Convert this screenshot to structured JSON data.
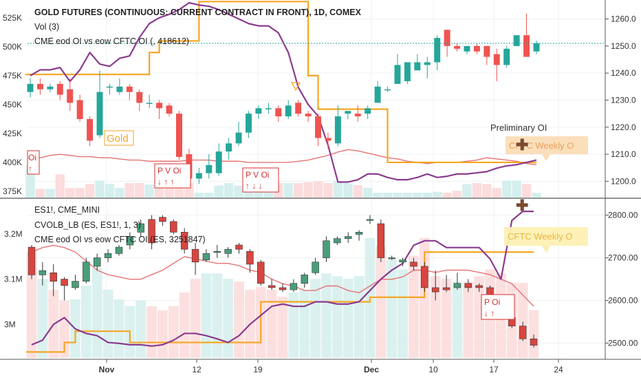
{
  "top": {
    "title": "GOLD FUTURES (CONTINUOUS: CURRENT CONTRACT IN FRONT), 1D, COMEX",
    "legend_vol": "Vol (3)",
    "legend_oi": "CME eod OI vs eow CFTC OI (, 418612)",
    "gold_label": "Gold",
    "preliminary_label": "Preliminary OI",
    "cftc_label": "CFTC Weekly O",
    "left_ticks": [
      "525K",
      "500K",
      "475K",
      "450K",
      "425K",
      "400K",
      "375K"
    ],
    "right_ticks": [
      "1260.0",
      "1250.0",
      "1240.0",
      "1230.0",
      "1220.0",
      "1210.0",
      "1200.0"
    ],
    "badges": [
      {
        "top": "Oi",
        "bottom": "↑"
      },
      {
        "top": "P V Oi",
        "bottom": "↓ ↑ ↑"
      },
      {
        "top": "P V Oi",
        "bottom": "↑ ↓ ↓"
      }
    ]
  },
  "bottom": {
    "legend_sym": "ES1!, CME_MINI",
    "legend_cvolb": "CVOLB_LB (ES, ES1!, 1, 3)",
    "legend_oi": "CME eod OI vs eow CFTC OI (ES, 3251847)",
    "cftc_label": "CFTC Weekly O",
    "left_ticks": [
      "3.2M",
      "3.1M",
      "3M"
    ],
    "right_ticks": [
      "2800.00",
      "2700.00",
      "2600.00",
      "2500.00"
    ],
    "badge": {
      "top": "P Oi",
      "bottom": "↓ ↑"
    }
  },
  "xaxis": {
    "labels": [
      "Nov",
      "12",
      "19",
      "Dec",
      "10",
      "17",
      "24"
    ]
  },
  "colors": {
    "up": "#26a69a",
    "down": "#ef5350",
    "oi": "#f5a623",
    "purple": "#8b3a8f",
    "pinkline": "#e57373"
  },
  "chart_data": [
    {
      "type": "candlestick",
      "title": "GOLD FUTURES (CONTINUOUS: CURRENT CONTRACT IN FRONT), 1D, COMEX",
      "price_range": [
        1195,
        1266
      ],
      "oi_range": [
        372000,
        538000
      ],
      "candles": [
        {
          "o": 1233,
          "c": 1236,
          "h": 1238,
          "l": 1231
        },
        {
          "o": 1236,
          "c": 1234,
          "h": 1238,
          "l": 1232
        },
        {
          "o": 1234,
          "c": 1235,
          "h": 1236,
          "l": 1233
        },
        {
          "o": 1236,
          "c": 1232,
          "h": 1237,
          "l": 1230
        },
        {
          "o": 1234,
          "c": 1229,
          "h": 1238,
          "l": 1226
        },
        {
          "o": 1230,
          "c": 1223,
          "h": 1232,
          "l": 1222
        },
        {
          "o": 1223,
          "c": 1215,
          "h": 1224,
          "l": 1213
        },
        {
          "o": 1217,
          "c": 1233,
          "h": 1241,
          "l": 1216
        },
        {
          "o": 1235,
          "c": 1235,
          "h": 1236,
          "l": 1232
        },
        {
          "o": 1233,
          "c": 1235,
          "h": 1238,
          "l": 1232
        },
        {
          "o": 1235,
          "c": 1233,
          "h": 1236,
          "l": 1230
        },
        {
          "o": 1233,
          "c": 1229,
          "h": 1234,
          "l": 1226
        },
        {
          "o": 1229,
          "c": 1229,
          "h": 1232,
          "l": 1227
        },
        {
          "o": 1229,
          "c": 1227,
          "h": 1230,
          "l": 1223
        },
        {
          "o": 1228,
          "c": 1225,
          "h": 1229,
          "l": 1224
        },
        {
          "o": 1225,
          "c": 1209,
          "h": 1226,
          "l": 1208
        },
        {
          "o": 1210,
          "c": 1201,
          "h": 1212,
          "l": 1199
        },
        {
          "o": 1201,
          "c": 1203,
          "h": 1205,
          "l": 1199
        },
        {
          "o": 1203,
          "c": 1206,
          "h": 1210,
          "l": 1201
        },
        {
          "o": 1203,
          "c": 1211,
          "h": 1214,
          "l": 1202
        },
        {
          "o": 1211,
          "c": 1214,
          "h": 1216,
          "l": 1208
        },
        {
          "o": 1214,
          "c": 1218,
          "h": 1222,
          "l": 1213
        },
        {
          "o": 1218,
          "c": 1225,
          "h": 1226,
          "l": 1216
        },
        {
          "o": 1225,
          "c": 1227,
          "h": 1228,
          "l": 1223
        },
        {
          "o": 1227,
          "c": 1227,
          "h": 1229,
          "l": 1225
        },
        {
          "o": 1227,
          "c": 1224,
          "h": 1228,
          "l": 1222
        },
        {
          "o": 1224,
          "c": 1228,
          "h": 1230,
          "l": 1223
        },
        {
          "o": 1229,
          "c": 1225,
          "h": 1230,
          "l": 1224
        },
        {
          "o": 1225,
          "c": 1224,
          "h": 1226,
          "l": 1222
        },
        {
          "o": 1224,
          "c": 1216,
          "h": 1225,
          "l": 1213
        },
        {
          "o": 1216,
          "c": 1215,
          "h": 1218,
          "l": 1212
        },
        {
          "o": 1214,
          "c": 1224,
          "h": 1228,
          "l": 1213
        },
        {
          "o": 1225,
          "c": 1226,
          "h": 1226,
          "l": 1223
        },
        {
          "o": 1225,
          "c": 1224,
          "h": 1228,
          "l": 1222
        },
        {
          "o": 1225,
          "c": 1227,
          "h": 1228,
          "l": 1223
        },
        {
          "o": 1229,
          "c": 1235,
          "h": 1237,
          "l": 1229
        },
        {
          "o": 1234,
          "c": 1234,
          "h": 1235,
          "l": 1233
        },
        {
          "o": 1236,
          "c": 1243,
          "h": 1247,
          "l": 1236
        },
        {
          "o": 1237,
          "c": 1244,
          "h": 1244,
          "l": 1236
        },
        {
          "o": 1241,
          "c": 1244,
          "h": 1247,
          "l": 1241
        },
        {
          "o": 1243,
          "c": 1244,
          "h": 1246,
          "l": 1238
        },
        {
          "o": 1244,
          "c": 1253,
          "h": 1254,
          "l": 1241
        },
        {
          "o": 1256,
          "c": 1250,
          "h": 1256,
          "l": 1246
        },
        {
          "o": 1250,
          "c": 1249,
          "h": 1251,
          "l": 1248
        },
        {
          "o": 1248,
          "c": 1250,
          "h": 1250,
          "l": 1247
        },
        {
          "o": 1250,
          "c": 1248,
          "h": 1251,
          "l": 1247
        },
        {
          "o": 1250,
          "c": 1246,
          "h": 1250,
          "l": 1243
        },
        {
          "o": 1247,
          "c": 1243,
          "h": 1249,
          "l": 1237
        },
        {
          "o": 1243,
          "c": 1249,
          "h": 1250,
          "l": 1242
        },
        {
          "o": 1250,
          "c": 1254,
          "h": 1254,
          "l": 1250
        },
        {
          "o": 1254,
          "c": 1246,
          "h": 1262,
          "l": 1246
        },
        {
          "o": 1248,
          "c": 1251,
          "h": 1252,
          "l": 1247
        }
      ],
      "volume": [
        0.66,
        0.18,
        0.18,
        0.48,
        0.2,
        0.2,
        0.28,
        0.35,
        0.28,
        0.2,
        0.3,
        0.3,
        0.27,
        0.25,
        0.3,
        0.4,
        0.3,
        0.1,
        0.1,
        0.25,
        0.3,
        0.25,
        0.3,
        0.3,
        0.22,
        0.3,
        0.3,
        0.3,
        0.32,
        0.34,
        0.3,
        0.35,
        0.3,
        0.26,
        0.2,
        0.1,
        0.1,
        0.1,
        0.1,
        0.1,
        0.1,
        0.12,
        0.1,
        0.14,
        0.28,
        0.3,
        0.28,
        0.2,
        0.35,
        0.35,
        0.28,
        0.1
      ],
      "oi_orange": [
        476,
        476,
        476,
        476,
        476,
        476,
        476,
        476,
        476,
        476,
        476,
        476,
        495,
        505,
        505,
        505,
        505,
        539,
        539,
        539,
        539,
        539,
        539,
        539,
        539,
        539,
        539,
        539,
        475,
        446,
        446,
        446,
        446,
        446,
        446,
        446,
        400,
        400,
        400,
        400,
        400,
        400,
        400,
        400,
        400,
        400,
        400,
        400,
        400,
        400,
        400,
        400
      ],
      "oi_purple": [
        475,
        480,
        480,
        482,
        470,
        480,
        495,
        485,
        483,
        490,
        492,
        508,
        520,
        525,
        528,
        532,
        538,
        536,
        535,
        532,
        528,
        524,
        520,
        518,
        518,
        512,
        495,
        465,
        450,
        440,
        415,
        383,
        383,
        385,
        390,
        390,
        387,
        385,
        385,
        387,
        390,
        387,
        388,
        390,
        390,
        391,
        392,
        395,
        397,
        398,
        400,
        402
      ],
      "oi_pink": [
        402,
        404,
        406,
        407,
        406,
        405,
        405,
        404,
        404,
        403,
        402,
        402,
        401,
        401,
        401,
        401,
        402,
        402,
        402,
        401,
        401,
        401,
        400,
        400,
        400,
        400,
        400,
        401,
        402,
        404,
        406,
        409,
        411,
        410,
        408,
        406,
        404,
        403,
        401,
        400,
        399,
        400,
        400,
        400,
        401,
        402,
        404,
        403,
        402,
        401,
        399,
        398
      ]
    },
    {
      "type": "candlestick",
      "title": "ES1!, CME_MINI",
      "price_range": [
        2475,
        2830
      ],
      "oi_range": [
        2.935,
        3.27
      ],
      "candles": [
        {
          "o": 2725,
          "c": 2660,
          "h": 2730,
          "l": 2650
        },
        {
          "o": 2660,
          "c": 2670,
          "h": 2690,
          "l": 2635
        },
        {
          "o": 2665,
          "c": 2645,
          "h": 2685,
          "l": 2610
        },
        {
          "o": 2650,
          "c": 2635,
          "h": 2655,
          "l": 2600
        },
        {
          "o": 2630,
          "c": 2645,
          "h": 2660,
          "l": 2625
        },
        {
          "o": 2645,
          "c": 2690,
          "h": 2700,
          "l": 2640
        },
        {
          "o": 2680,
          "c": 2700,
          "h": 2710,
          "l": 2670
        },
        {
          "o": 2700,
          "c": 2710,
          "h": 2720,
          "l": 2690
        },
        {
          "o": 2710,
          "c": 2725,
          "h": 2730,
          "l": 2705
        },
        {
          "o": 2730,
          "c": 2750,
          "h": 2760,
          "l": 2720
        },
        {
          "o": 2760,
          "c": 2780,
          "h": 2790,
          "l": 2750
        },
        {
          "o": 2790,
          "c": 2735,
          "h": 2800,
          "l": 2720
        },
        {
          "o": 2795,
          "c": 2785,
          "h": 2800,
          "l": 2775
        },
        {
          "o": 2785,
          "c": 2760,
          "h": 2790,
          "l": 2755
        },
        {
          "o": 2760,
          "c": 2720,
          "h": 2770,
          "l": 2710
        },
        {
          "o": 2720,
          "c": 2690,
          "h": 2735,
          "l": 2660
        },
        {
          "o": 2695,
          "c": 2710,
          "h": 2720,
          "l": 2690
        },
        {
          "o": 2715,
          "c": 2715,
          "h": 2730,
          "l": 2700
        },
        {
          "o": 2710,
          "c": 2720,
          "h": 2725,
          "l": 2700
        },
        {
          "o": 2730,
          "c": 2720,
          "h": 2735,
          "l": 2710
        },
        {
          "o": 2715,
          "c": 2685,
          "h": 2720,
          "l": 2665
        },
        {
          "o": 2690,
          "c": 2640,
          "h": 2695,
          "l": 2635
        },
        {
          "o": 2635,
          "c": 2630,
          "h": 2650,
          "l": 2625
        },
        {
          "o": 2630,
          "c": 2625,
          "h": 2640,
          "l": 2620
        },
        {
          "o": 2625,
          "c": 2640,
          "h": 2650,
          "l": 2620
        },
        {
          "o": 2640,
          "c": 2660,
          "h": 2665,
          "l": 2630
        },
        {
          "o": 2665,
          "c": 2690,
          "h": 2700,
          "l": 2660
        },
        {
          "o": 2700,
          "c": 2740,
          "h": 2750,
          "l": 2690
        },
        {
          "o": 2735,
          "c": 2745,
          "h": 2750,
          "l": 2730
        },
        {
          "o": 2745,
          "c": 2750,
          "h": 2760,
          "l": 2735
        },
        {
          "o": 2755,
          "c": 2760,
          "h": 2765,
          "l": 2740
        },
        {
          "o": 2790,
          "c": 2790,
          "h": 2800,
          "l": 2780
        },
        {
          "o": 2780,
          "c": 2700,
          "h": 2790,
          "l": 2690
        },
        {
          "o": 2700,
          "c": 2700,
          "h": 2705,
          "l": 2695
        },
        {
          "o": 2690,
          "c": 2695,
          "h": 2700,
          "l": 2680
        },
        {
          "o": 2690,
          "c": 2680,
          "h": 2700,
          "l": 2670
        },
        {
          "o": 2680,
          "c": 2630,
          "h": 2690,
          "l": 2620
        },
        {
          "o": 2630,
          "c": 2620,
          "h": 2670,
          "l": 2600
        },
        {
          "o": 2630,
          "c": 2625,
          "h": 2660,
          "l": 2620
        },
        {
          "o": 2630,
          "c": 2640,
          "h": 2665,
          "l": 2625
        },
        {
          "o": 2640,
          "c": 2630,
          "h": 2650,
          "l": 2620
        },
        {
          "o": 2635,
          "c": 2630,
          "h": 2640,
          "l": 2620
        },
        {
          "o": 2630,
          "c": 2595,
          "h": 2635,
          "l": 2590
        },
        {
          "o": 2590,
          "c": 2565,
          "h": 2600,
          "l": 2560
        },
        {
          "o": 2560,
          "c": 2540,
          "h": 2570,
          "l": 2535
        },
        {
          "o": 2540,
          "c": 2510,
          "h": 2550,
          "l": 2505
        },
        {
          "o": 2510,
          "c": 2495,
          "h": 2520,
          "l": 2490
        }
      ],
      "volume": [
        0.78,
        0.58,
        0.5,
        0.42,
        0.43,
        0.53,
        0.66,
        0.5,
        0.43,
        0.38,
        0.42,
        0.38,
        0.35,
        0.38,
        0.48,
        0.58,
        0.62,
        0.62,
        0.58,
        0.56,
        0.5,
        0.52,
        0.5,
        0.45,
        0.48,
        0.5,
        0.58,
        0.62,
        0.6,
        0.58,
        0.6,
        0.88,
        0.82,
        0.72,
        0.65,
        0.75,
        0.88,
        0.6,
        0.58,
        0.56,
        0.56,
        0.6,
        0.65,
        0.62,
        0.55,
        0.55,
        0.35
      ],
      "oi_orange": [
        2.939,
        2.939,
        2.939,
        2.96,
        2.985,
        2.985,
        2.985,
        2.985,
        2.985,
        2.96,
        2.96,
        2.96,
        2.96,
        2.96,
        2.96,
        2.96,
        2.96,
        2.96,
        2.96,
        2.96,
        2.96,
        3.05,
        3.05,
        3.05,
        3.05,
        3.05,
        3.05,
        3.05,
        3.05,
        3.05,
        3.05,
        3.06,
        3.06,
        3.06,
        3.06,
        3.06,
        3.16,
        3.16,
        3.16,
        3.16,
        3.16,
        3.16,
        3.16,
        3.16,
        3.16,
        3.16,
        3.16
      ],
      "oi_purple": [
        2.955,
        2.965,
        3.0,
        3.015,
        2.99,
        2.98,
        2.975,
        2.96,
        2.958,
        2.955,
        2.955,
        2.952,
        2.955,
        2.965,
        2.98,
        2.98,
        2.975,
        2.968,
        2.96,
        2.975,
        3.0,
        3.02,
        3.04,
        3.045,
        3.04,
        3.04,
        3.05,
        3.05,
        3.045,
        3.045,
        3.05,
        3.075,
        3.1,
        3.12,
        3.135,
        3.175,
        3.185,
        3.185,
        3.17,
        3.17,
        3.17,
        3.17,
        3.145,
        3.1,
        3.23,
        3.25,
        3.25
      ],
      "oi_pink": [
        3.16,
        3.17,
        3.175,
        3.17,
        3.16,
        3.14,
        3.12,
        3.11,
        3.105,
        3.1,
        3.1,
        3.11,
        3.12,
        3.135,
        3.15,
        3.145,
        3.14,
        3.135,
        3.135,
        3.13,
        3.12,
        3.115,
        3.1,
        3.09,
        3.085,
        3.075,
        3.075,
        3.085,
        3.085,
        3.075,
        3.07,
        3.085,
        3.1,
        3.1,
        3.105,
        3.12,
        3.12,
        3.115,
        3.12,
        3.12,
        3.12,
        3.115,
        3.11,
        3.1,
        3.09,
        3.065,
        3.04
      ]
    }
  ]
}
